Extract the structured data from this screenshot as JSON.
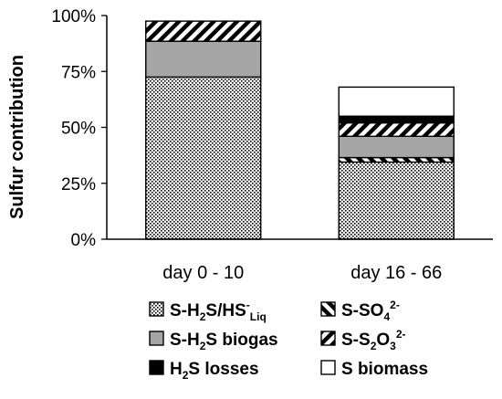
{
  "chart_data": {
    "type": "bar",
    "stacked": true,
    "categories": [
      "day 0 - 10",
      "day 16 - 66"
    ],
    "ylabel": "Sulfur contribution",
    "ylim": [
      0,
      100
    ],
    "yticks": [
      {
        "value": 0,
        "label": "0%"
      },
      {
        "value": 25,
        "label": "25%"
      },
      {
        "value": 50,
        "label": "50%"
      },
      {
        "value": 75,
        "label": "75%"
      },
      {
        "value": 100,
        "label": "100%"
      }
    ],
    "grid": false,
    "legend_position": "bottom",
    "series": [
      {
        "name": "S-H2S/HS-Liq",
        "legend": [
          {
            "t": "S-H"
          },
          {
            "t": "2",
            "sub": true
          },
          {
            "t": "S/HS"
          },
          {
            "t": "-",
            "sup": true
          },
          {
            "t": "Liq",
            "sub": true
          }
        ],
        "pattern": "dots",
        "values": [
          72.5,
          34.5
        ]
      },
      {
        "name": "S-SO42-",
        "legend": [
          {
            "t": "S-SO"
          },
          {
            "t": "4",
            "sub": true
          },
          {
            "t": "2-",
            "sup": true
          }
        ],
        "pattern": "diag-up",
        "values": [
          0,
          2
        ]
      },
      {
        "name": "S-H2S biogas",
        "legend": [
          {
            "t": "S-H"
          },
          {
            "t": "2",
            "sub": true
          },
          {
            "t": "S biogas"
          }
        ],
        "pattern": "gray",
        "color": "#a6a6a6",
        "values": [
          16,
          9.5
        ]
      },
      {
        "name": "S-S2O32-",
        "legend": [
          {
            "t": "S-S"
          },
          {
            "t": "2",
            "sub": true
          },
          {
            "t": "O"
          },
          {
            "t": "3",
            "sub": true
          },
          {
            "t": "2-",
            "sup": true
          }
        ],
        "pattern": "diag-down",
        "values": [
          9,
          6
        ]
      },
      {
        "name": "H2S losses",
        "legend": [
          {
            "t": "H"
          },
          {
            "t": "2",
            "sub": true
          },
          {
            "t": "S losses"
          }
        ],
        "pattern": "black",
        "color": "#000000",
        "values": [
          0,
          3
        ]
      },
      {
        "name": "S biomass",
        "legend": [
          {
            "t": "S biomass"
          }
        ],
        "pattern": "white",
        "color": "#ffffff",
        "values": [
          0,
          13
        ]
      }
    ]
  }
}
